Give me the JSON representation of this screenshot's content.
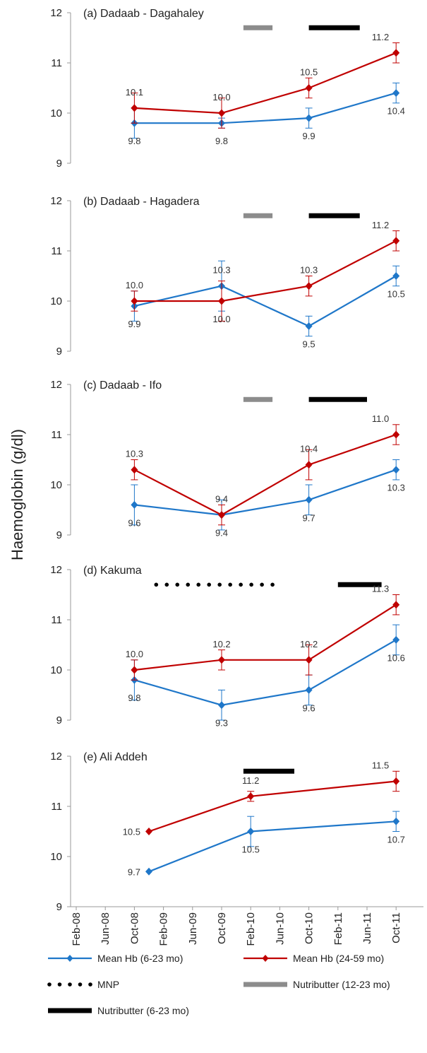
{
  "chart_data": {
    "type": "line",
    "ylabel": "Haemoglobin (g/dl)",
    "ylim": [
      9,
      12
    ],
    "yticks": [
      "9",
      "10",
      "11",
      "12"
    ],
    "x_axis": "time (Feb-08 to Oct-11)",
    "xtick_labels": [
      "Feb-08",
      "Jun-08",
      "Oct-08",
      "Feb-09",
      "Jun-09",
      "Oct-09",
      "Feb-10",
      "Jun-10",
      "Oct-10",
      "Feb-11",
      "Jun-11",
      "Oct-11"
    ],
    "legend": {
      "placement": "bottom",
      "items": [
        {
          "key": "hb623",
          "label": "Mean Hb (6-23 mo)",
          "color": "#1f77c9",
          "style": "line-diamond"
        },
        {
          "key": "hb2459",
          "label": "Mean Hb (24-59 mo)",
          "color": "#c00000",
          "style": "line-diamond"
        },
        {
          "key": "mnp",
          "label": "MNP",
          "color": "#000000",
          "style": "dotted"
        },
        {
          "key": "nb1223",
          "label": "Nutributter (12-23 mo)",
          "color": "#8c8c8c",
          "style": "bar"
        },
        {
          "key": "nb623",
          "label": "Nutributter (6-23 mo)",
          "color": "#000000",
          "style": "bar"
        }
      ]
    },
    "panels": [
      {
        "title": "(a) Dadaab - Dagahaley",
        "x": [
          "2008-10",
          "2009-10",
          "2010-10",
          "2011-10"
        ],
        "series": [
          {
            "key": "hb623",
            "values": [
              9.8,
              9.8,
              9.9,
              10.4
            ],
            "errors": [
              0.3,
              0.1,
              0.2,
              0.2
            ],
            "labels": [
              "9.8",
              "9.8",
              "9.9",
              "10.4"
            ]
          },
          {
            "key": "hb2459",
            "values": [
              10.1,
              10.0,
              10.5,
              11.2
            ],
            "errors": [
              0.3,
              0.3,
              0.2,
              0.2
            ],
            "labels": [
              "10.1",
              "10.0",
              "10.5",
              "11.2"
            ]
          }
        ],
        "interventions": [
          {
            "key": "nb1223",
            "start": "2010-01",
            "end": "2010-05"
          },
          {
            "key": "nb623",
            "start": "2010-10",
            "end": "2011-05"
          }
        ]
      },
      {
        "title": "(b) Dadaab - Hagadera",
        "x": [
          "2008-10",
          "2009-10",
          "2010-10",
          "2011-10"
        ],
        "series": [
          {
            "key": "hb623",
            "values": [
              9.9,
              10.3,
              9.5,
              10.5
            ],
            "errors": [
              0.3,
              0.5,
              0.2,
              0.2
            ],
            "labels": [
              "9.9",
              "10.3",
              "9.5",
              "10.5"
            ]
          },
          {
            "key": "hb2459",
            "values": [
              10.0,
              10.0,
              10.3,
              11.2
            ],
            "errors": [
              0.2,
              0.4,
              0.2,
              0.2
            ],
            "labels": [
              "10.0",
              "10.0",
              "10.3",
              "11.2"
            ]
          }
        ],
        "interventions": [
          {
            "key": "nb1223",
            "start": "2010-01",
            "end": "2010-05"
          },
          {
            "key": "nb623",
            "start": "2010-10",
            "end": "2011-05"
          }
        ]
      },
      {
        "title": "(c) Dadaab - Ifo",
        "x": [
          "2008-10",
          "2009-10",
          "2010-10",
          "2011-10"
        ],
        "series": [
          {
            "key": "hb623",
            "values": [
              9.6,
              9.4,
              9.7,
              10.3
            ],
            "errors": [
              0.4,
              0.3,
              0.3,
              0.2
            ],
            "labels": [
              "9.6",
              "9.4",
              "9.7",
              "10.3"
            ]
          },
          {
            "key": "hb2459",
            "values": [
              10.3,
              9.4,
              10.4,
              11.0
            ],
            "errors": [
              0.2,
              0.2,
              0.3,
              0.2
            ],
            "labels": [
              "10.3",
              "9.4",
              "10.4",
              "11.0"
            ]
          }
        ],
        "interventions": [
          {
            "key": "nb1223",
            "start": "2010-01",
            "end": "2010-05"
          },
          {
            "key": "nb623",
            "start": "2010-10",
            "end": "2011-06"
          }
        ]
      },
      {
        "title": "(d) Kakuma",
        "x": [
          "2008-10",
          "2009-10",
          "2010-10",
          "2011-10"
        ],
        "series": [
          {
            "key": "hb623",
            "values": [
              9.8,
              9.3,
              9.6,
              10.6
            ],
            "errors": [
              0.4,
              0.3,
              0.3,
              0.3
            ],
            "labels": [
              "9.8",
              "9.3",
              "9.6",
              "10.6"
            ]
          },
          {
            "key": "hb2459",
            "values": [
              10.0,
              10.2,
              10.2,
              11.3
            ],
            "errors": [
              0.2,
              0.2,
              0.3,
              0.2
            ],
            "labels": [
              "10.0",
              "10.2",
              "10.2",
              "11.3"
            ]
          }
        ],
        "interventions": [
          {
            "key": "mnp",
            "start": "2009-01",
            "end": "2010-05"
          },
          {
            "key": "nb623",
            "start": "2011-02",
            "end": "2011-08"
          }
        ]
      },
      {
        "title": "(e) Ali Addeh",
        "x": [
          "2008-12",
          "2010-02",
          "2011-10"
        ],
        "series": [
          {
            "key": "hb623",
            "values": [
              9.7,
              10.5,
              10.7
            ],
            "errors": [
              0,
              0.3,
              0.2
            ],
            "labels": [
              "9.7",
              "10.5",
              "10.7"
            ]
          },
          {
            "key": "hb2459",
            "values": [
              10.5,
              11.2,
              11.5
            ],
            "errors": [
              0,
              0.1,
              0.2
            ],
            "labels": [
              "10.5",
              "11.2",
              "11.5"
            ]
          }
        ],
        "interventions": [
          {
            "key": "nb623",
            "start": "2010-01",
            "end": "2010-08"
          }
        ]
      }
    ]
  }
}
